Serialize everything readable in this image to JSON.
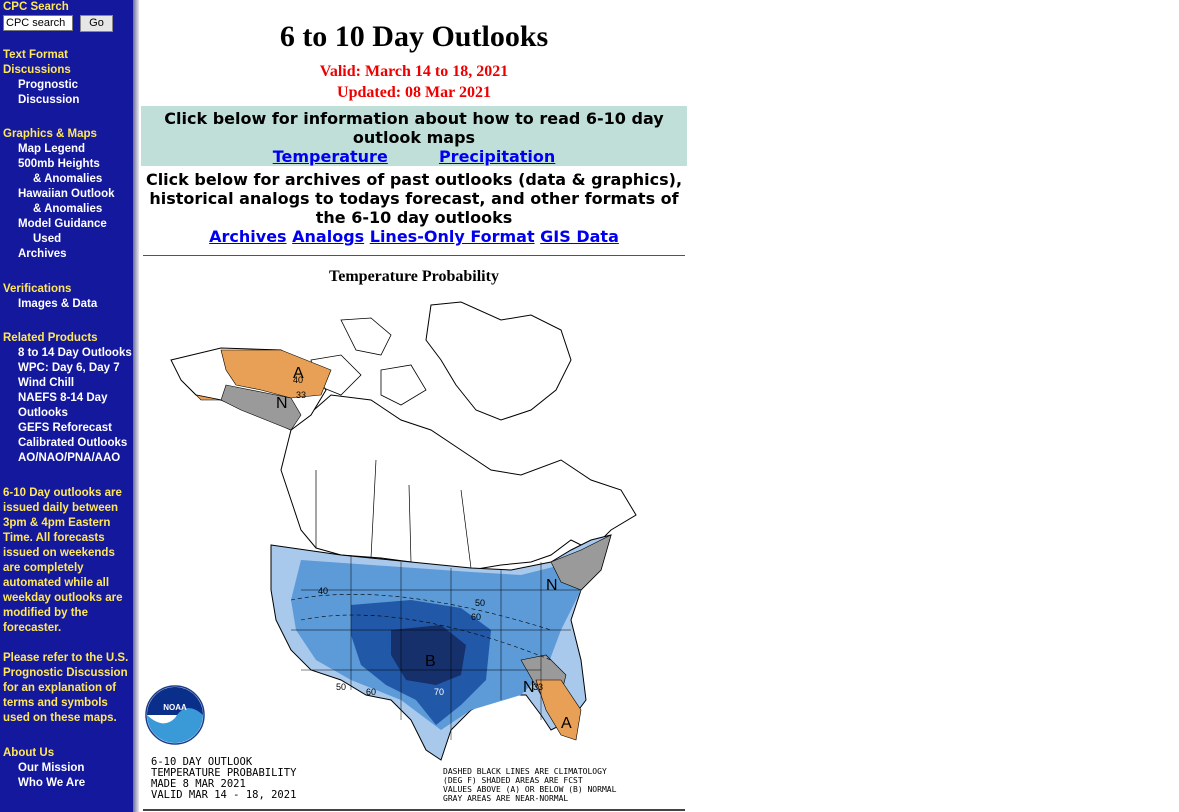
{
  "sidebar": {
    "search_title": "CPC Search",
    "search_value": "CPC search",
    "go_label": "Go",
    "text_format_title_1": "Text Format",
    "text_format_title_2": "Discussions",
    "prognostic_1": "Prognostic",
    "prognostic_2": "Discussion",
    "graphics_title": "Graphics & Maps",
    "map_legend": "Map Legend",
    "heights_1": "500mb Heights",
    "heights_2": "& Anomalies",
    "hawaiian_1": "Hawaiian Outlook",
    "hawaiian_2": "& Anomalies",
    "model_1": "Model Guidance",
    "model_2": "Used",
    "archives": "Archives",
    "verifications_title": "Verifications",
    "images_data": "Images & Data",
    "related_title": "Related Products",
    "r1": "8 to 14 Day Outlooks",
    "r2": "WPC: Day 6, Day 7",
    "r3": "Wind Chill",
    "r4a": "NAEFS 8-14 Day",
    "r4b": "Outlooks",
    "r5": "GEFS Reforecast",
    "r6": "Calibrated Outlooks",
    "r7": "AO/NAO/PNA/AAO",
    "note1": "6-10 Day outlooks are issued daily between 3pm & 4pm Eastern Time. All forecasts issued on weekends are completely automated while all weekday outlooks are modified by the forecaster.",
    "note2": "Please refer to the U.S. Prognostic Discussion for an explanation of terms and symbols used on these maps.",
    "about_title": "About Us",
    "mission": "Our Mission",
    "who": "Who We Are"
  },
  "main": {
    "title": "6 to 10 Day Outlooks",
    "valid": "Valid: March 14 to 18, 2021",
    "updated": "Updated: 08 Mar 2021",
    "info_text": "Click below for information about how to read 6-10 day outlook maps",
    "temperature_link": "Temperature",
    "precipitation_link": "Precipitation",
    "archive_text": "Click below for archives of past outlooks (data & graphics), historical analogs to todays forecast, and other formats of the 6-10 day outlooks",
    "archives_link": "Archives",
    "analogs_link": "Analogs",
    "lines_link": "Lines-Only Format",
    "gis_link": "GIS Data",
    "map_title": "Temperature Probability"
  },
  "map": {
    "caption_1": "6-10 DAY OUTLOOK",
    "caption_2": "TEMPERATURE PROBABILITY",
    "caption_3": "MADE 8 MAR 2021",
    "caption_4": "VALID MAR 14 - 18, 2021",
    "legend_1": "DASHED BLACK LINES ARE CLIMATOLOGY",
    "legend_2": "(DEG F) SHADED AREAS ARE FCST",
    "legend_3": "VALUES ABOVE (A) OR BELOW (B) NORMAL",
    "legend_4": "GRAY AREAS ARE NEAR-NORMAL",
    "noaa": "NOAA",
    "labels": {
      "A": "A",
      "B": "B",
      "N": "N"
    },
    "values": {
      "p40": "40",
      "p33": "33",
      "p50": "50",
      "p60": "60",
      "p70": "70",
      "p90": "90"
    }
  },
  "colors": {
    "sidebar_bg": "#14189c",
    "section_yellow": "#ffe75a",
    "valid_red": "#ee0000",
    "info_bg": "#bfdfd8",
    "above_orange": "#e8a056",
    "below_light": "#a8c8ec",
    "below_mid": "#5c9ad8",
    "below_dark": "#2258a8",
    "below_darkest": "#16306c",
    "near_normal_gray": "#9a9a9a"
  }
}
